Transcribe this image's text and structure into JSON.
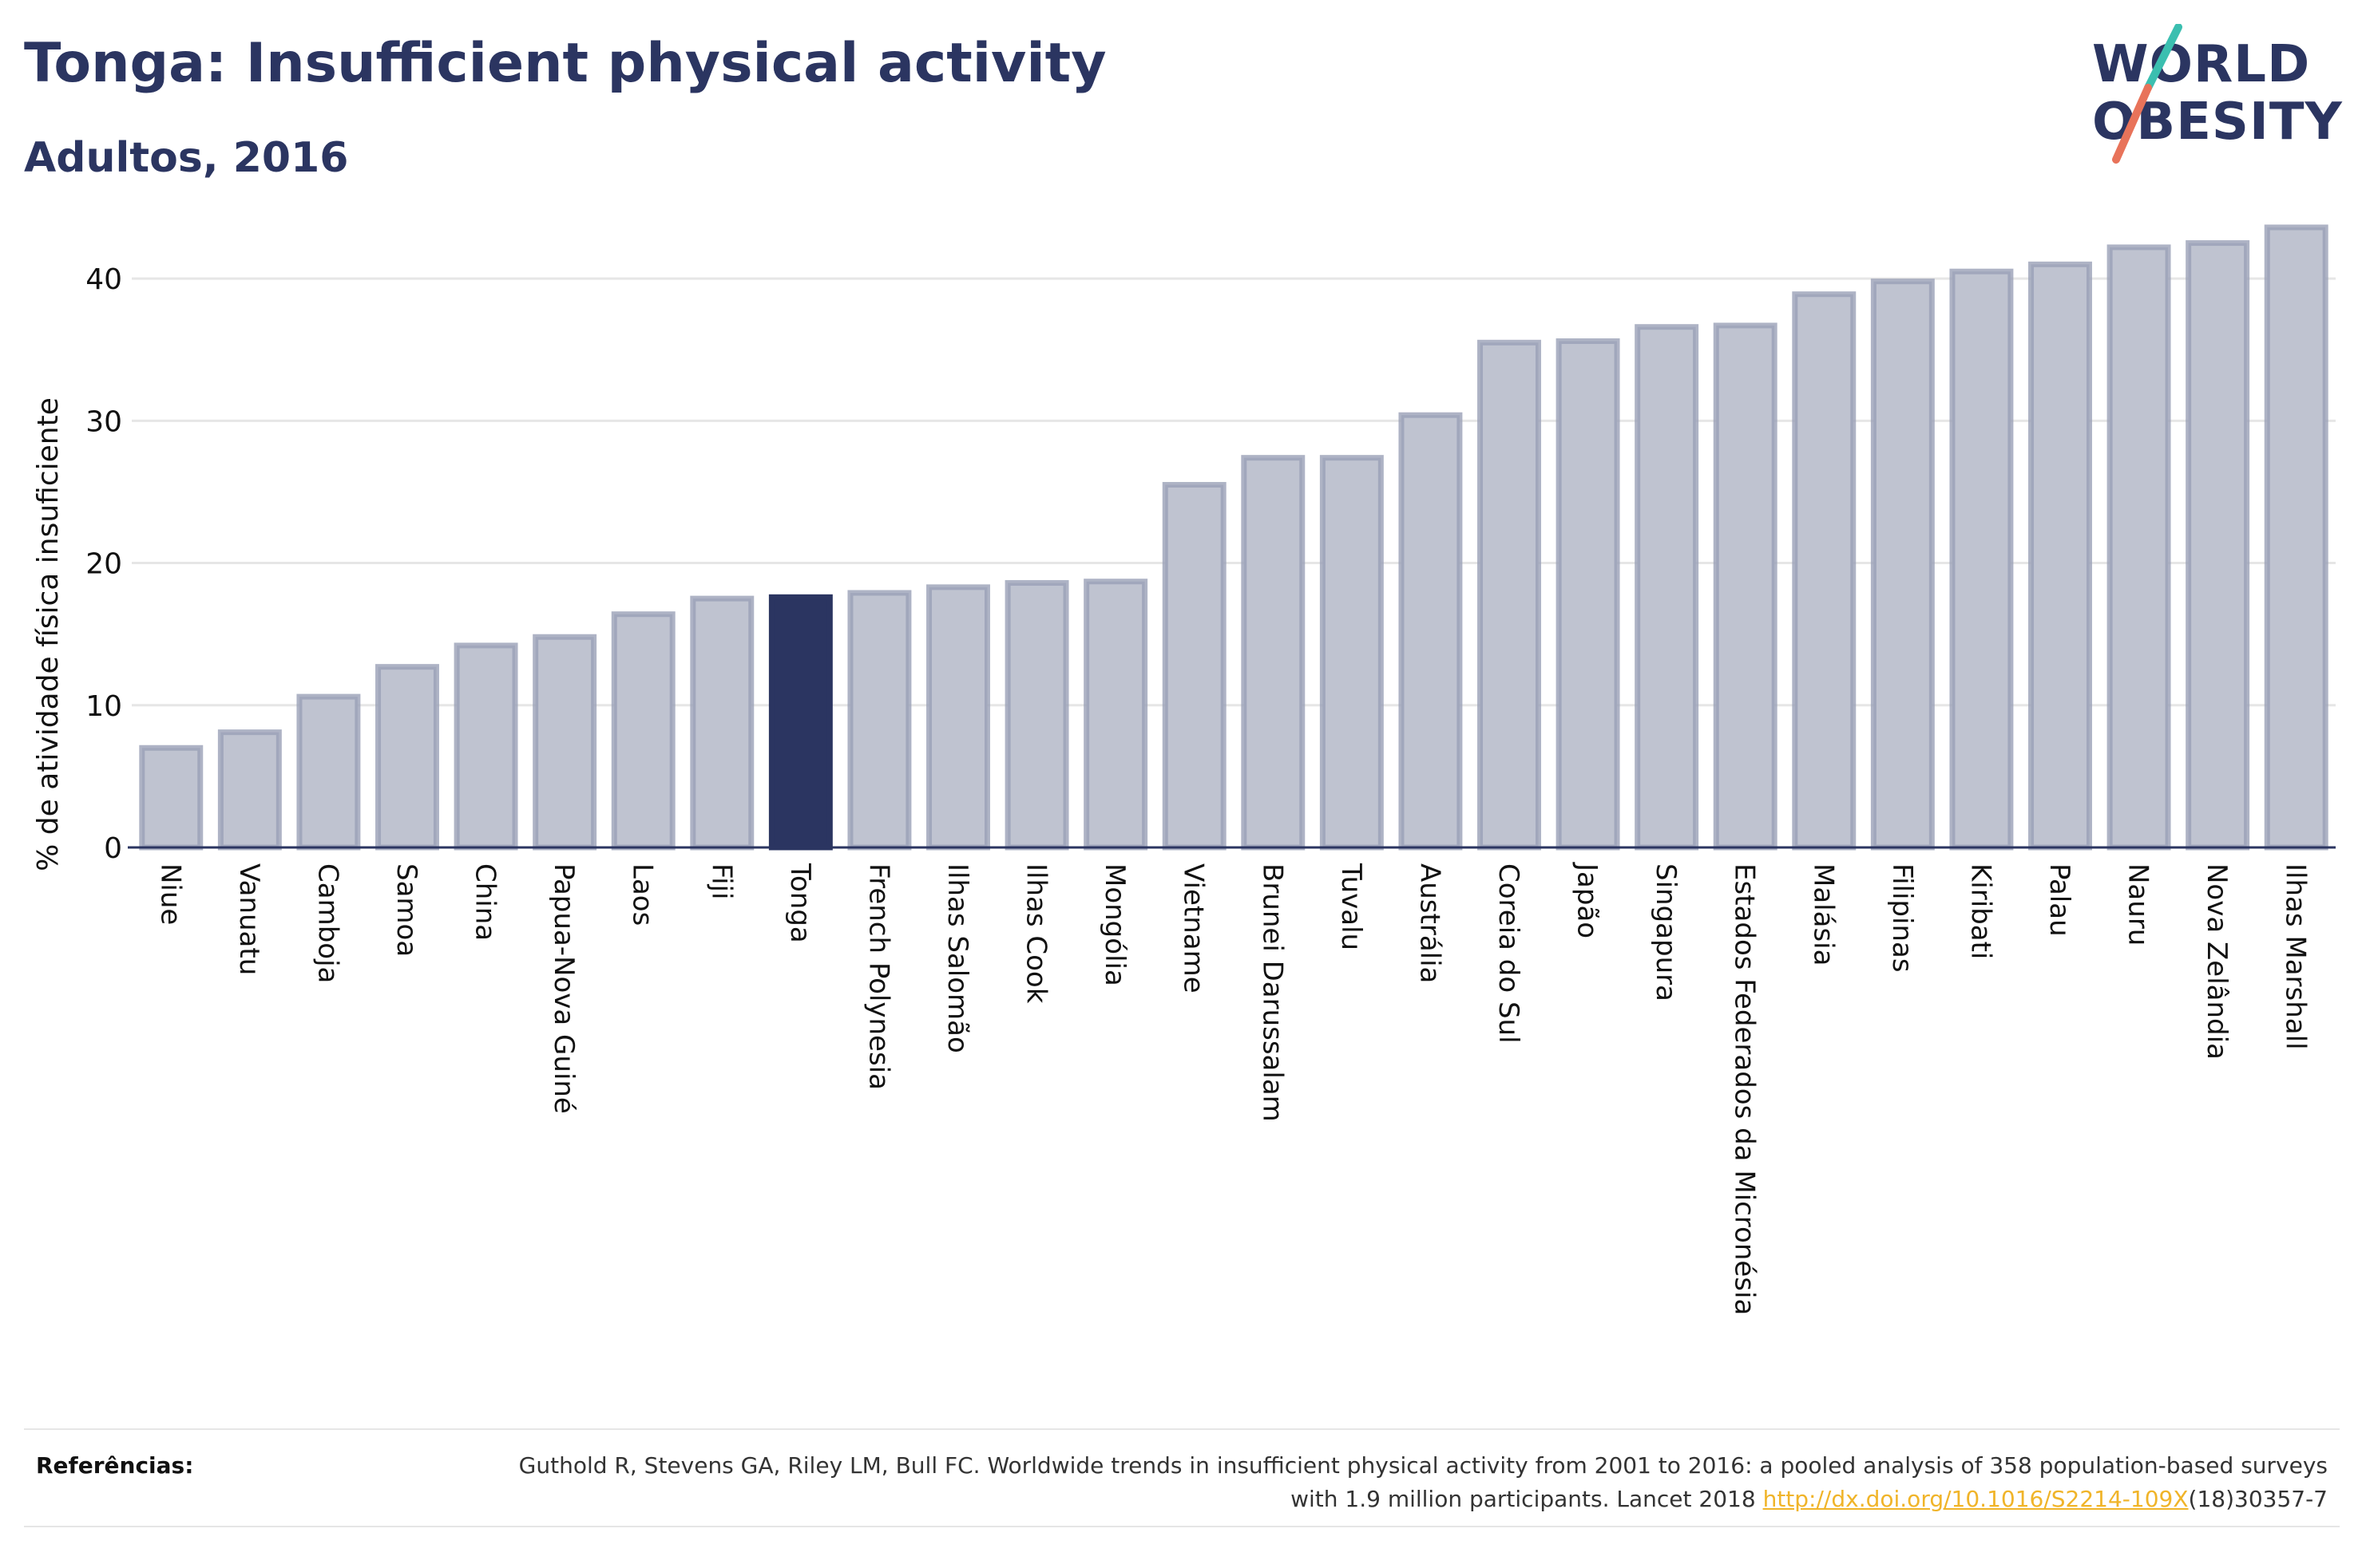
{
  "header": {
    "title": "Tonga: Insufficient physical activity",
    "subtitle": "Adultos, 2016"
  },
  "logo": {
    "line1": "WORLD",
    "line2": "OBESITY",
    "slash_colors": [
      "#3bbfb0",
      "#e8735a"
    ]
  },
  "colors": {
    "bar": "#bfc3d0",
    "bar_border": "#9aa0b6",
    "highlight": "#2b3561",
    "grid": "#e6e6e6",
    "axis": "#2b3561"
  },
  "chart_data": {
    "type": "bar",
    "title": "Tonga: Insufficient physical activity",
    "subtitle": "Adultos, 2016",
    "xlabel": "",
    "ylabel": "% de atividade física insuficiente",
    "ylim": [
      0,
      45
    ],
    "yticks": [
      0,
      10,
      20,
      30,
      40
    ],
    "grid": true,
    "highlight": "Tonga",
    "categories": [
      "Niue",
      "Vanuatu",
      "Camboja",
      "Samoa",
      "China",
      "Papua-Nova Guiné",
      "Laos",
      "Fiji",
      "Tonga",
      "French Polynesia",
      "Ilhas Salomão",
      "Ilhas Cook",
      "Mongólia",
      "Vietname",
      "Brunei Darussalam",
      "Tuvalu",
      "Austrália",
      "Coreia do Sul",
      "Japão",
      "Singapura",
      "Estados Federados da Micronésia",
      "Malásia",
      "Filipinas",
      "Kiribati",
      "Palau",
      "Nauru",
      "Nova Zelândia",
      "Ilhas Marshall"
    ],
    "values": [
      7.0,
      8.1,
      10.6,
      12.7,
      14.2,
      14.8,
      16.4,
      17.5,
      17.6,
      17.9,
      18.3,
      18.6,
      18.7,
      25.5,
      27.4,
      27.4,
      30.4,
      35.5,
      35.6,
      36.6,
      36.7,
      38.9,
      39.8,
      40.5,
      41.0,
      42.2,
      42.5,
      43.6
    ]
  },
  "references": {
    "label": "Referências:",
    "text_before": "Guthold R, Stevens GA, Riley LM, Bull FC. Worldwide trends in insufficient physical activity from 2001 to 2016: a pooled analysis of 358 population-based surveys with 1.9 million participants. Lancet 2018 ",
    "link": "http://dx.doi.org/10.1016/S2214-109X",
    "text_after": "(18)30357-7"
  }
}
